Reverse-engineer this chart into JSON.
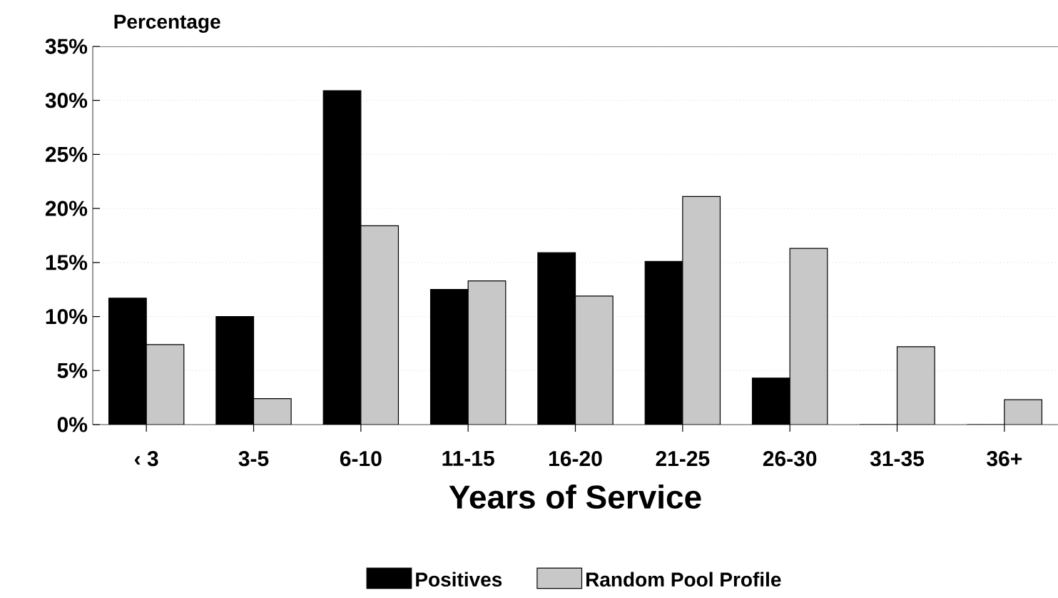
{
  "chart_data": {
    "type": "bar",
    "xlabel": "Years of Service",
    "ylabel": "Percentage",
    "categories": [
      "‹ 3",
      "3-5",
      "6-10",
      "11-15",
      "16-20",
      "21-25",
      "26-30",
      "31-35",
      "36+"
    ],
    "series": [
      {
        "name": "Positives",
        "color": "#000000",
        "values": [
          11.7,
          10.0,
          30.9,
          12.5,
          15.9,
          15.1,
          4.3,
          0,
          0
        ]
      },
      {
        "name": "Random Pool Profile",
        "color": "#c8c8c8",
        "values": [
          7.4,
          2.4,
          18.4,
          13.3,
          11.9,
          21.1,
          16.3,
          7.2,
          2.3
        ]
      }
    ],
    "ylim": [
      0,
      35
    ],
    "yticks": [
      {
        "value": 0,
        "label": "0%"
      },
      {
        "value": 5,
        "label": "5%"
      },
      {
        "value": 10,
        "label": "10%"
      },
      {
        "value": 15,
        "label": "15%"
      },
      {
        "value": 20,
        "label": "20%"
      },
      {
        "value": 25,
        "label": "25%"
      },
      {
        "value": 30,
        "label": "30%"
      },
      {
        "value": 35,
        "label": "35%"
      }
    ],
    "grid": "y",
    "legend": "bottom"
  }
}
